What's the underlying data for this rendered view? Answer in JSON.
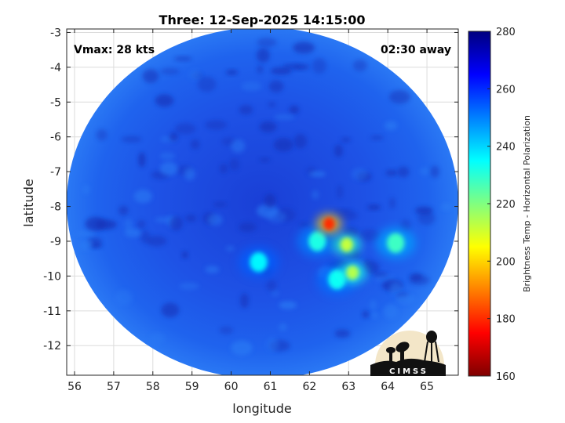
{
  "chart_data": {
    "type": "heatmap",
    "title": "Three: 12-Sep-2025 14:15:00",
    "xlabel": "longitude",
    "ylabel": "latitude",
    "xlim": [
      55.8,
      65.8
    ],
    "ylim": [
      -12.85,
      -2.9
    ],
    "x_ticks": [
      56,
      57,
      58,
      59,
      60,
      61,
      62,
      63,
      64,
      65
    ],
    "y_ticks": [
      -3,
      -4,
      -5,
      -6,
      -7,
      -8,
      -9,
      -10,
      -11,
      -12
    ],
    "grid": true,
    "colorbar": {
      "label": "Brightness Temp - Horizontal Polarization",
      "min": 160,
      "max": 280,
      "ticks": [
        160,
        180,
        200,
        220,
        240,
        260,
        280
      ]
    },
    "swath": {
      "center_lon": 60.8,
      "center_lat": -7.9,
      "radius_lon": 5.0,
      "radius_lat": 5.05,
      "background_temp": 258
    },
    "features": [
      {
        "lon": 62.5,
        "lat": -8.5,
        "temp": 180
      },
      {
        "lon": 62.95,
        "lat": -9.1,
        "temp": 212
      },
      {
        "lon": 63.1,
        "lat": -9.9,
        "temp": 214
      },
      {
        "lon": 62.2,
        "lat": -9.0,
        "temp": 232
      },
      {
        "lon": 64.2,
        "lat": -9.05,
        "temp": 228
      },
      {
        "lon": 62.7,
        "lat": -10.1,
        "temp": 234
      },
      {
        "lon": 60.7,
        "lat": -9.6,
        "temp": 236
      }
    ]
  },
  "annotations": {
    "vmax": "Vmax: 28 kts",
    "time_away": "02:30 away"
  },
  "logo": {
    "text": "CIMSS"
  }
}
